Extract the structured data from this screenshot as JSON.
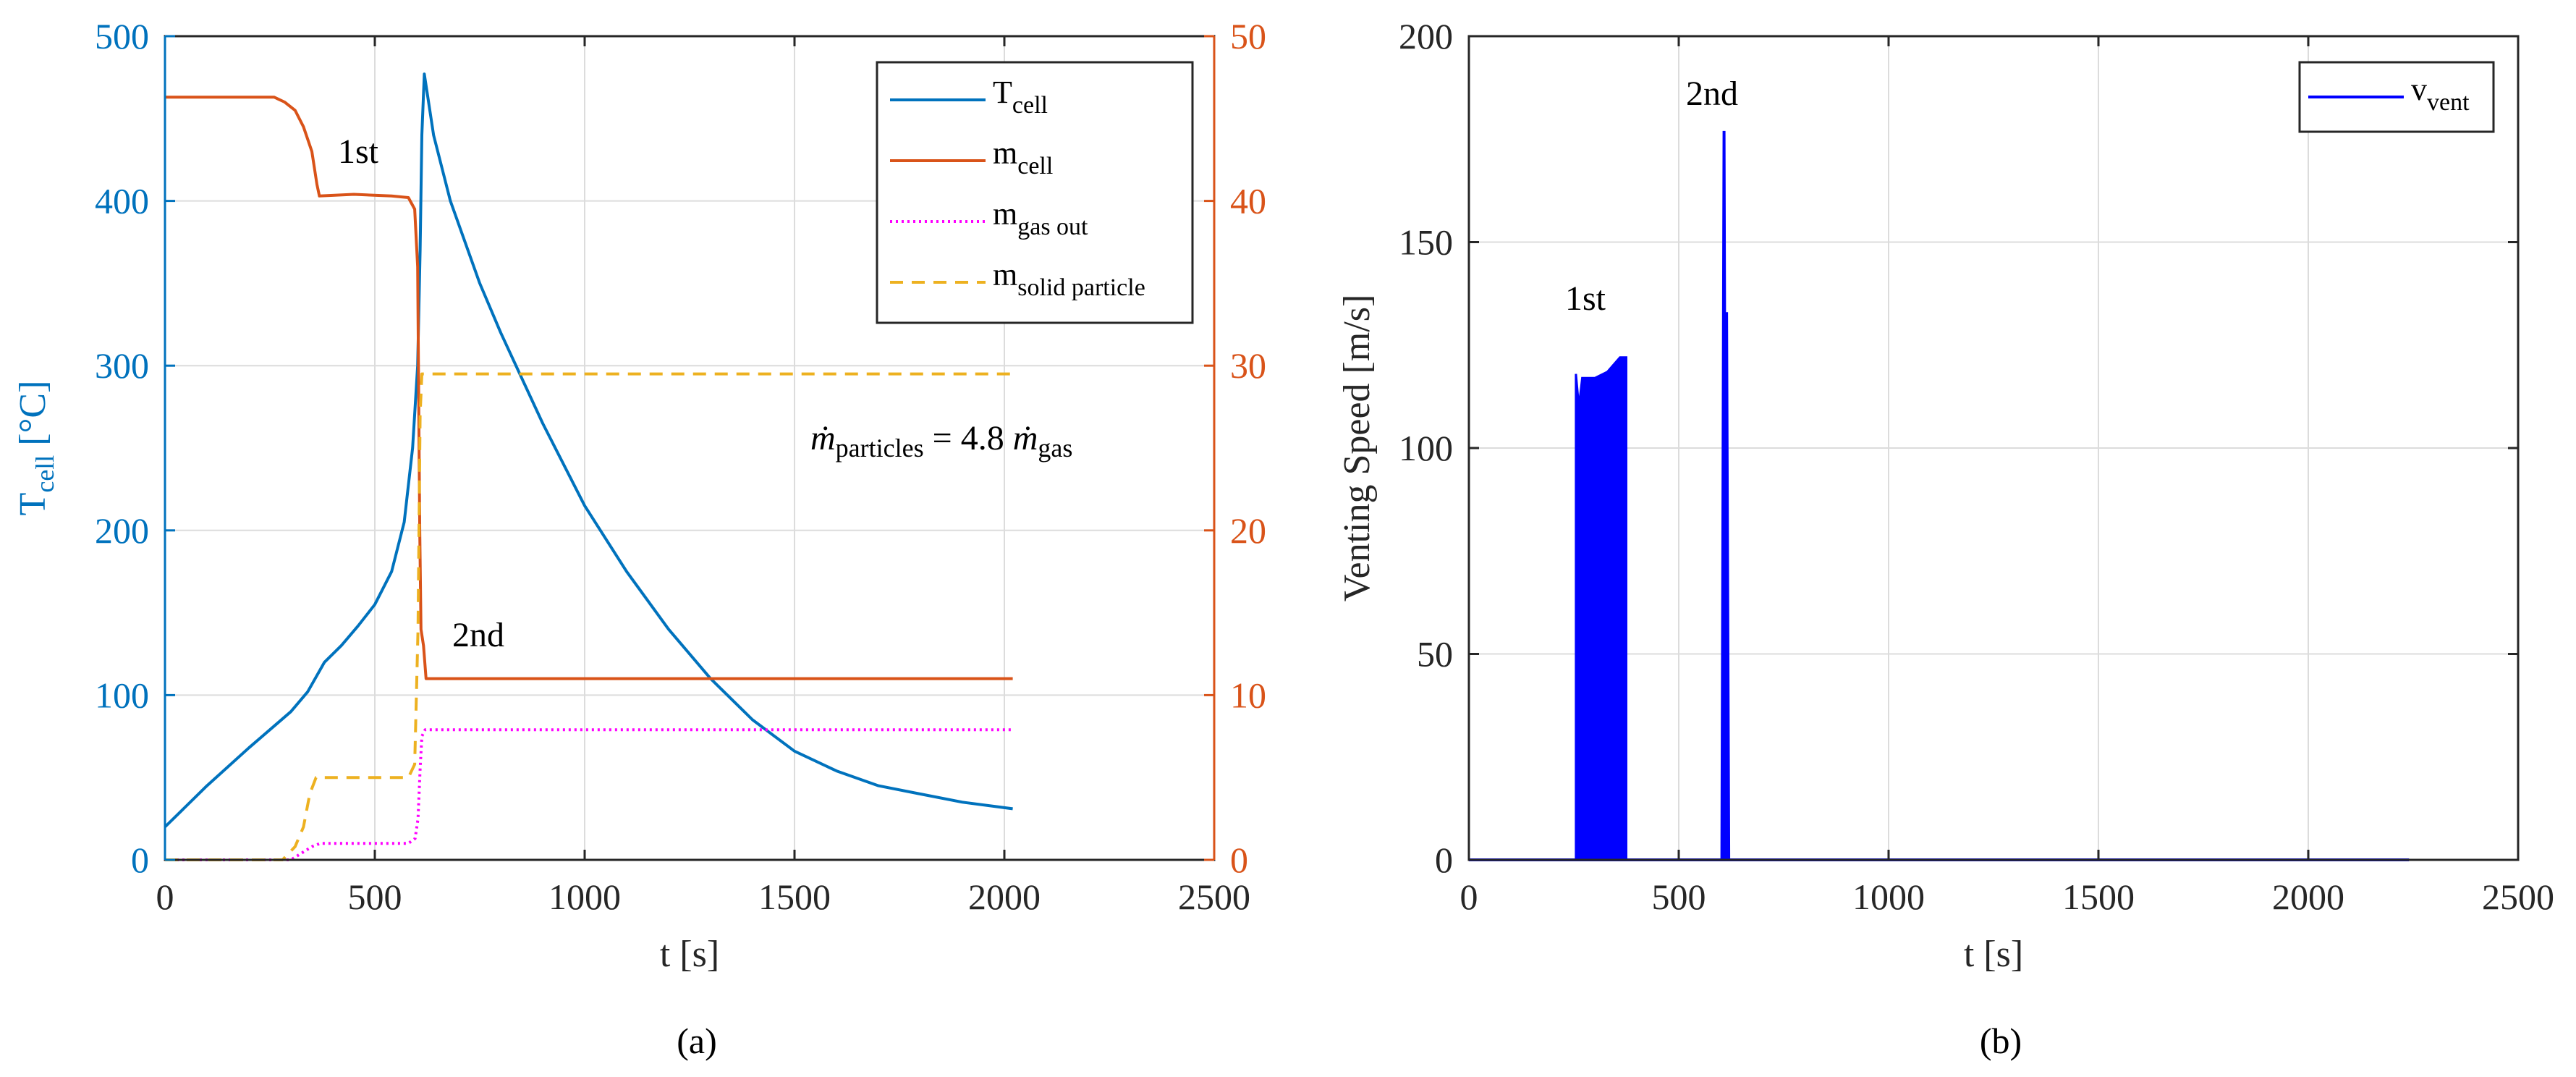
{
  "panels": {
    "a_caption": "(a)",
    "b_caption": "(b)"
  },
  "chart_data": [
    {
      "type": "line",
      "panel": "(a)",
      "xlabel": "t [s]",
      "ylabel_left": {
        "main": "T",
        "sub": "cell",
        "unit": " [°C]"
      },
      "xlim": [
        0,
        2500
      ],
      "ylim_left": [
        0,
        500
      ],
      "ylim_right": [
        0,
        50
      ],
      "xticks": [
        0,
        500,
        1000,
        1500,
        2000,
        2500
      ],
      "yticks_left": [
        0,
        100,
        200,
        300,
        400,
        500
      ],
      "yticks_right": [
        0,
        10,
        20,
        30,
        40,
        50
      ],
      "grid": true,
      "legend_position": "top-right",
      "colors": {
        "left_axis": "#0072BD",
        "right_axis": "#D95319"
      },
      "series": [
        {
          "name": {
            "main": "T",
            "sub": "cell"
          },
          "axis": "left",
          "color": "#0072BD",
          "style": "solid",
          "points": [
            [
              0,
              20
            ],
            [
              100,
              45
            ],
            [
              200,
              68
            ],
            [
              300,
              90
            ],
            [
              340,
              102
            ],
            [
              380,
              120
            ],
            [
              420,
              130
            ],
            [
              460,
              142
            ],
            [
              500,
              155
            ],
            [
              540,
              175
            ],
            [
              570,
              205
            ],
            [
              590,
              250
            ],
            [
              602,
              300
            ],
            [
              608,
              370
            ],
            [
              612,
              440
            ],
            [
              618,
              477
            ],
            [
              640,
              440
            ],
            [
              680,
              400
            ],
            [
              750,
              350
            ],
            [
              800,
              320
            ],
            [
              900,
              265
            ],
            [
              1000,
              215
            ],
            [
              1100,
              175
            ],
            [
              1200,
              140
            ],
            [
              1300,
              110
            ],
            [
              1400,
              85
            ],
            [
              1500,
              66
            ],
            [
              1600,
              54
            ],
            [
              1700,
              45
            ],
            [
              1800,
              40
            ],
            [
              1900,
              35
            ],
            [
              2020,
              31
            ]
          ]
        },
        {
          "name": {
            "main": "m",
            "sub": "cell"
          },
          "axis": "right",
          "color": "#D95319",
          "style": "solid",
          "points": [
            [
              0,
              46.3
            ],
            [
              260,
              46.3
            ],
            [
              285,
              46.0
            ],
            [
              310,
              45.5
            ],
            [
              330,
              44.5
            ],
            [
              350,
              43
            ],
            [
              362,
              41
            ],
            [
              368,
              40.3
            ],
            [
              450,
              40.4
            ],
            [
              540,
              40.3
            ],
            [
              580,
              40.2
            ],
            [
              595,
              39.5
            ],
            [
              602,
              36
            ],
            [
              607,
              20
            ],
            [
              610,
              14
            ],
            [
              616,
              13
            ],
            [
              622,
              11
            ],
            [
              2020,
              11
            ]
          ]
        },
        {
          "name": {
            "main": "m",
            "sub": "gas out"
          },
          "axis": "right",
          "color": "#FF00FF",
          "style": "dotted",
          "points": [
            [
              0,
              0
            ],
            [
              300,
              0
            ],
            [
              325,
              0.4
            ],
            [
              350,
              0.8
            ],
            [
              370,
              1.0
            ],
            [
              580,
              1.0
            ],
            [
              596,
              1.3
            ],
            [
              603,
              2.5
            ],
            [
              608,
              5.5
            ],
            [
              612,
              7.5
            ],
            [
              620,
              7.9
            ],
            [
              2020,
              7.9
            ]
          ]
        },
        {
          "name": {
            "main": "m",
            "sub": "solid particle"
          },
          "axis": "right",
          "color": "#EDB120",
          "style": "dashed",
          "points": [
            [
              0,
              0
            ],
            [
              280,
              0
            ],
            [
              310,
              0.8
            ],
            [
              330,
              2
            ],
            [
              345,
              4
            ],
            [
              360,
              5
            ],
            [
              580,
              5
            ],
            [
              595,
              5.8
            ],
            [
              603,
              14
            ],
            [
              608,
              27
            ],
            [
              612,
              29.5
            ],
            [
              2020,
              29.5
            ]
          ]
        }
      ],
      "annotations": [
        "1st",
        "2nd"
      ],
      "equation": {
        "lhs": "ṁ",
        "lhs_sub": "particles",
        "op": " = 4.8 ",
        "rhs": "ṁ",
        "rhs_sub": "gas"
      }
    },
    {
      "type": "line",
      "panel": "(b)",
      "xlabel": "t [s]",
      "ylabel": "Venting Speed [m/s]",
      "xlim": [
        0,
        2500
      ],
      "ylim": [
        0,
        200
      ],
      "xticks": [
        0,
        500,
        1000,
        1500,
        2000,
        2500
      ],
      "yticks": [
        0,
        50,
        100,
        150,
        200
      ],
      "grid": true,
      "legend_position": "top-right",
      "series": [
        {
          "name": {
            "main": "v",
            "sub": "vent"
          },
          "color": "#0000FF",
          "baseline": [
            [
              0,
              0
            ],
            [
              2240,
              0
            ]
          ],
          "first_event": {
            "x_start": 255,
            "x_end": 375,
            "upper": [
              [
                255,
                118
              ],
              [
                262,
                110
              ],
              [
                270,
                117
              ],
              [
                300,
                117
              ],
              [
                330,
                118.5
              ],
              [
                360,
                122
              ],
              [
                375,
                122
              ]
            ]
          },
          "second_event_spikes": [
            [
              608,
              177
            ],
            [
              614,
              133
            ]
          ]
        }
      ],
      "annotations": [
        "1st",
        "2nd"
      ]
    }
  ]
}
